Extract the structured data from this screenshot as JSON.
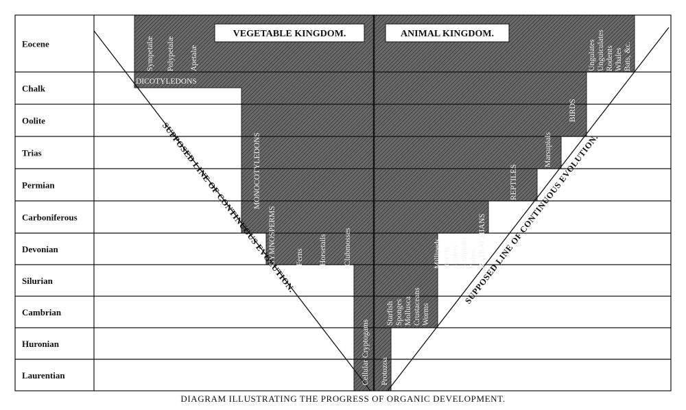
{
  "rows": [
    "Eocene",
    "Chalk",
    "Oolite",
    "Trias",
    "Permian",
    "Carboniferous",
    "Devonian",
    "Silurian",
    "Cambrian",
    "Huronian",
    "Laurentian"
  ],
  "kingdoms": {
    "vegetable": "VEGETABLE KINGDOM.",
    "animal": "ANIMAL KINGDOM."
  },
  "plant_groups": [
    "Sympetalæ",
    "Polypetalæ",
    "Apetalæ",
    "DICOTYLEDONS",
    "MONOCOTYLEDONS",
    "GYMNOSPERMS",
    "Ferns",
    "Horsetails",
    "Clubmosses",
    "Cellular Cryptogams"
  ],
  "animal_groups": [
    "Protozoa",
    "Starfish",
    "Sponges",
    "Mollusca",
    "Crustaceans",
    "Worms",
    "Millipeds",
    "Insects",
    "Spiders",
    "Scorpions",
    "Fishes",
    "BATRACHIANS",
    "REPTILES",
    "Marsupials",
    "BIRDS",
    "Ungulates",
    "Unguiculates",
    "Rodents",
    "Whales",
    "Bats, &c."
  ],
  "evolution_lines": [
    "SUPPOSED LINE OF CONTINUOUS EVOLUTION.",
    "SUPPOSED LINE OF CONTINUOUS EVOLUTION."
  ],
  "caption": "DIAGRAM ILLUSTRATING THE PROGRESS OF ORGANIC DEVELOPMENT."
}
